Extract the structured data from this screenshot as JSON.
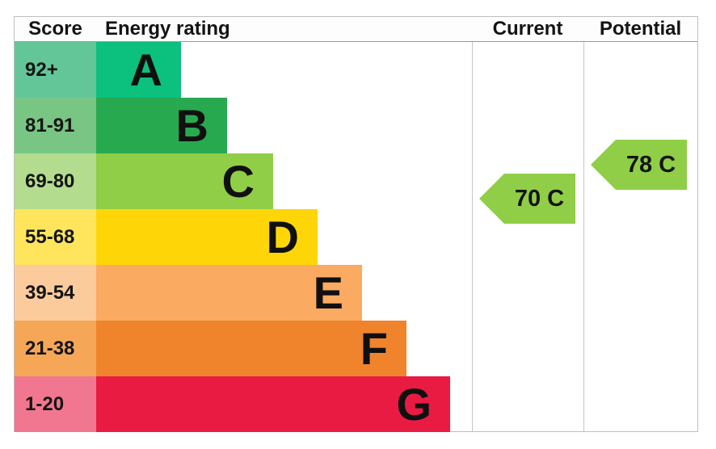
{
  "header": {
    "score": "Score",
    "energy_rating": "Energy rating",
    "current": "Current",
    "potential": "Potential"
  },
  "bands": [
    {
      "letter": "A",
      "score": "92+",
      "bar_color": "#0cc07e",
      "score_color": "#63c699"
    },
    {
      "letter": "B",
      "score": "81-91",
      "bar_color": "#27a94f",
      "score_color": "#78c584"
    },
    {
      "letter": "C",
      "score": "69-80",
      "bar_color": "#8fce46",
      "score_color": "#b3dc8f"
    },
    {
      "letter": "D",
      "score": "55-68",
      "bar_color": "#fed608",
      "score_color": "#ffe55c"
    },
    {
      "letter": "E",
      "score": "39-54",
      "bar_color": "#fbaa62",
      "score_color": "#fccb9c"
    },
    {
      "letter": "F",
      "score": "21-38",
      "bar_color": "#f0842c",
      "score_color": "#f5a757"
    },
    {
      "letter": "G",
      "score": "1-20",
      "bar_color": "#e91b43",
      "score_color": "#f1768f"
    }
  ],
  "current": {
    "label": "70 C",
    "value": 70,
    "band": "C",
    "color": "#8fce46"
  },
  "potential": {
    "label": "78 C",
    "value": 78,
    "band": "C",
    "color": "#8fce46"
  },
  "chart_data": {
    "type": "bar",
    "title": "Energy rating",
    "columns": [
      "Score",
      "Energy rating",
      "Current",
      "Potential"
    ],
    "categories": [
      "A",
      "B",
      "C",
      "D",
      "E",
      "F",
      "G"
    ],
    "score_ranges": [
      "92+",
      "81-91",
      "69-80",
      "55-68",
      "39-54",
      "21-38",
      "1-20"
    ],
    "bar_lengths_relative": [
      1,
      2,
      3,
      4,
      5,
      6,
      7
    ],
    "band_colors": {
      "A": "#0cc07e",
      "B": "#27a94f",
      "C": "#8fce46",
      "D": "#fed608",
      "E": "#fbaa62",
      "F": "#f0842c",
      "G": "#e91b43"
    },
    "series": [
      {
        "name": "Current",
        "value": 70,
        "band": "C"
      },
      {
        "name": "Potential",
        "value": 78,
        "band": "C"
      }
    ],
    "legend_position": "none",
    "grid": false,
    "orientation": "horizontal"
  }
}
